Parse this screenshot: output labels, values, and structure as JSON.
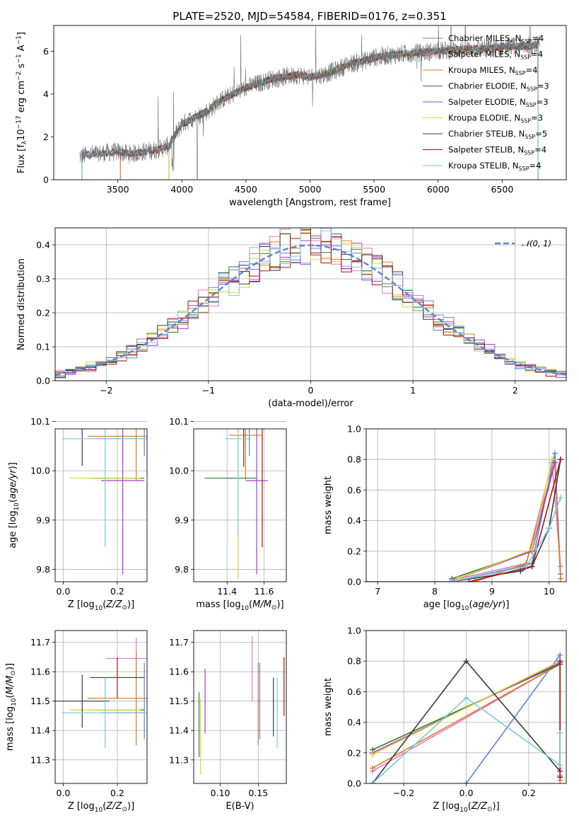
{
  "figure": {
    "title": "PLATE=2520, MJD=54584, FIBERID=0176, z=0.351"
  },
  "colors": {
    "Chabrier MILES": "#5c85d6",
    "Salpeter MILES": "#e377c2",
    "Kroupa MILES": "#e07a1f",
    "Chabrier ELODIE": "#2f7a2f",
    "Salpeter ELODIE": "#a23cd0",
    "Kroupa ELODIE": "#dcd52a",
    "Chabrier STELIB": "#3a3a3a",
    "Salpeter STELIB": "#b01010",
    "Kroupa STELIB": "#76c9d9",
    "grid": "#b0b0b0",
    "spectrum": "#707070"
  },
  "chart_data": [
    {
      "id": "spectrum",
      "type": "line",
      "title": "PLATE=2520, MJD=54584, FIBERID=0176, z=0.351",
      "xlabel": "wavelength [Angstrom, rest frame]",
      "ylabel": "Flux [f_λ 10^-17 erg cm^-2 s^-1 A^-1]",
      "xlim": [
        3000,
        7000
      ],
      "ylim": [
        0,
        7.2
      ],
      "xticks": [
        "3500",
        "4000",
        "4500",
        "5000",
        "5500",
        "6000",
        "6500"
      ],
      "yticks": [
        "0",
        "2",
        "4",
        "6"
      ],
      "grid": false,
      "legend_position": "right",
      "continuum": {
        "x": [
          3200,
          3300,
          3400,
          3500,
          3600,
          3700,
          3800,
          3900,
          3950,
          4000,
          4100,
          4200,
          4300,
          4400,
          4500,
          4600,
          4700,
          4800,
          4900,
          5000,
          5100,
          5200,
          5300,
          5400,
          5500,
          5600,
          5700,
          5800,
          5900,
          6000,
          6100,
          6200,
          6300,
          6400,
          6500,
          6600,
          6700,
          6780
        ],
        "y": [
          1.1,
          1.2,
          1.25,
          1.3,
          1.2,
          1.3,
          1.4,
          1.6,
          2.1,
          2.6,
          2.9,
          3.2,
          3.7,
          4.0,
          4.3,
          4.5,
          4.7,
          4.8,
          4.9,
          4.8,
          4.9,
          5.1,
          5.4,
          5.5,
          5.7,
          5.8,
          5.85,
          5.9,
          5.95,
          6.0,
          6.05,
          6.1,
          6.1,
          6.15,
          6.2,
          6.2,
          6.25,
          6.3
        ]
      },
      "series": [
        {
          "name": "Chabrier MILES",
          "label": "Chabrier MILES, N",
          "sub": "SSP",
          "suffix": "=4",
          "start": 3520,
          "end": 6780
        },
        {
          "name": "Salpeter MILES",
          "label": "Salpeter MILES, N",
          "sub": "SSP",
          "suffix": "=4",
          "start": 3520,
          "end": 6780
        },
        {
          "name": "Kroupa MILES",
          "label": "Kroupa MILES, N",
          "sub": "SSP",
          "suffix": "=4",
          "start": 3520,
          "end": 6780
        },
        {
          "name": "Chabrier ELODIE",
          "label": "Chabrier ELODIE, N",
          "sub": "SSP",
          "suffix": "=3",
          "start": 3900,
          "end": 6780
        },
        {
          "name": "Salpeter ELODIE",
          "label": "Salpeter ELODIE, N",
          "sub": "SSP",
          "suffix": "=3",
          "start": 3900,
          "end": 6780
        },
        {
          "name": "Kroupa ELODIE",
          "label": "Kroupa ELODIE, N",
          "sub": "SSP",
          "suffix": "=3",
          "start": 3900,
          "end": 6780
        },
        {
          "name": "Chabrier STELIB",
          "label": "Chabrier STELIB, N",
          "sub": "SSP",
          "suffix": "=5",
          "start": 3220,
          "end": 6780
        },
        {
          "name": "Salpeter STELIB",
          "label": "Salpeter STELIB, N",
          "sub": "SSP",
          "suffix": "=4",
          "start": 3220,
          "end": 6780
        },
        {
          "name": "Kroupa STELIB",
          "label": "Kroupa STELIB, N",
          "sub": "SSP",
          "suffix": "=4",
          "start": 3220,
          "end": 6780
        }
      ]
    },
    {
      "id": "residuals",
      "type": "line",
      "xlabel": "(data-model)/error",
      "ylabel": "Normed distribution",
      "xlim": [
        -2.5,
        2.5
      ],
      "ylim": [
        0,
        0.45
      ],
      "xticks": [
        "−2",
        "−1",
        "0",
        "1",
        "2"
      ],
      "yticks": [
        "0.0",
        "0.1",
        "0.2",
        "0.3",
        "0.4"
      ],
      "grid": true,
      "legend_position": "top-right",
      "normal_label": "𝒩(0, 1)",
      "bins": {
        "start": -2.5,
        "width": 0.1,
        "count": 50
      }
    },
    {
      "id": "age_vs_Z",
      "type": "scatter",
      "xlabel": "Z [log10(Z/Z⊙)]",
      "ylabel": "age [log10(age/yr)]",
      "xlim": [
        -0.03,
        0.31
      ],
      "ylim": [
        9.775,
        10.085
      ],
      "xticks": [
        "0.0",
        "0.2"
      ],
      "yticks": [
        "9.8",
        "9.9",
        "10.0",
        "10.1"
      ],
      "grid": true,
      "points": [
        {
          "name": "Chabrier MILES",
          "x": 0.3,
          "xerr": 0.0,
          "y": 10.09,
          "yerr": 0.06
        },
        {
          "name": "Salpeter MILES",
          "x": 0.27,
          "xerr": 0.11,
          "y": 10.095,
          "yerr": 0.0
        },
        {
          "name": "Kroupa MILES",
          "x": 0.27,
          "xerr": 0.18,
          "y": 10.07,
          "yerr": 0.09
        },
        {
          "name": "Chabrier ELODIE",
          "x": 0.2,
          "xerr": 0.1,
          "y": 9.985,
          "yerr": 0.0
        },
        {
          "name": "Salpeter ELODIE",
          "x": 0.22,
          "xerr": 0.08,
          "y": 9.98,
          "yerr": 0.19
        },
        {
          "name": "Kroupa ELODIE",
          "x": 0.155,
          "xerr": 0.13,
          "y": 9.985,
          "yerr": 0.0
        },
        {
          "name": "Chabrier STELIB",
          "x": 0.07,
          "xerr": 0.1,
          "y": 10.12,
          "yerr": 0.11
        },
        {
          "name": "Salpeter STELIB",
          "x": 0.2,
          "xerr": 0.1,
          "y": 10.065,
          "yerr": 0.0
        },
        {
          "name": "Kroupa STELIB",
          "x": 0.155,
          "xerr": 0.16,
          "y": 10.065,
          "yerr": 0.22
        }
      ]
    },
    {
      "id": "age_vs_mass",
      "type": "scatter",
      "xlabel": "mass [log10(M/M⊙)]",
      "ylabel": "",
      "xlim": [
        11.22,
        11.72
      ],
      "ylim": [
        9.775,
        10.085
      ],
      "xticks": [
        "11.4",
        "11.6"
      ],
      "yticks": [
        "9.8",
        "9.9",
        "10.0",
        "10.1"
      ],
      "grid": true,
      "points": [
        {
          "name": "Chabrier MILES",
          "x": 11.52,
          "xerr": 0.0,
          "y": 10.08,
          "yerr": 0.05
        },
        {
          "name": "Salpeter MILES",
          "x": 11.63,
          "xerr": 0.05,
          "y": 10.095,
          "yerr": 0.0
        },
        {
          "name": "Kroupa MILES",
          "x": 11.5,
          "xerr": 0.09,
          "y": 10.072,
          "yerr": 0.09
        },
        {
          "name": "Chabrier ELODIE",
          "x": 11.42,
          "xerr": 0.14,
          "y": 9.985,
          "yerr": 0.0
        },
        {
          "name": "Salpeter ELODIE",
          "x": 11.56,
          "xerr": 0.06,
          "y": 9.98,
          "yerr": 0.19
        },
        {
          "name": "Kroupa ELODIE",
          "x": 11.46,
          "xerr": 0.0,
          "y": 9.98,
          "yerr": 0.2
        },
        {
          "name": "Chabrier STELIB",
          "x": 11.49,
          "xerr": 0.07,
          "y": 10.118,
          "yerr": 0.11
        },
        {
          "name": "Salpeter STELIB",
          "x": 11.59,
          "xerr": 0.0,
          "y": 10.065,
          "yerr": 0.22
        },
        {
          "name": "Kroupa STELIB",
          "x": 11.46,
          "xerr": 0.07,
          "y": 10.065,
          "yerr": 0.2
        }
      ]
    },
    {
      "id": "mass_weight_vs_age",
      "type": "line",
      "xlabel": "age [log10(age/yr)]",
      "ylabel": "mass weight",
      "xlim": [
        6.8,
        10.3
      ],
      "ylim": [
        0,
        1.0
      ],
      "xticks": [
        "7",
        "8",
        "9",
        "10"
      ],
      "yticks": [
        "0.0",
        "0.2",
        "0.4",
        "0.6",
        "0.8",
        "1.0"
      ],
      "grid": true,
      "series": [
        {
          "name": "Chabrier MILES",
          "x": [
            6.8,
            8.3,
            9.5,
            9.7,
            10.1,
            10.2
          ],
          "y": [
            0.0,
            0.0,
            0.1,
            0.12,
            0.84,
            0.05
          ]
        },
        {
          "name": "Salpeter MILES",
          "x": [
            8.3,
            9.6,
            10.05,
            10.2
          ],
          "y": [
            0.01,
            0.12,
            0.78,
            0.1
          ]
        },
        {
          "name": "Kroupa MILES",
          "x": [
            8.7,
            9.6,
            10.1,
            10.2
          ],
          "y": [
            0.0,
            0.12,
            0.78,
            0.02
          ]
        },
        {
          "name": "Chabrier ELODIE",
          "x": [
            8.3,
            9.7,
            10.1
          ],
          "y": [
            0.02,
            0.2,
            0.78
          ]
        },
        {
          "name": "Salpeter ELODIE",
          "x": [
            8.4,
            9.7,
            10.1
          ],
          "y": [
            0.02,
            0.2,
            0.78
          ]
        },
        {
          "name": "Kroupa ELODIE",
          "x": [
            8.4,
            9.7,
            10.05
          ],
          "y": [
            0.02,
            0.21,
            0.8
          ]
        },
        {
          "name": "Chabrier STELIB",
          "x": [
            8.3,
            9.5,
            9.7,
            10.0,
            10.2
          ],
          "y": [
            0.0,
            0.07,
            0.1,
            0.35,
            0.8
          ]
        },
        {
          "name": "Salpeter STELIB",
          "x": [
            8.6,
            9.7,
            10.2
          ],
          "y": [
            0.0,
            0.1,
            0.8
          ]
        },
        {
          "name": "Kroupa STELIB",
          "x": [
            8.3,
            9.6,
            10.0,
            10.2
          ],
          "y": [
            0.0,
            0.1,
            0.35,
            0.55
          ]
        }
      ]
    },
    {
      "id": "mass_vs_Z",
      "type": "scatter",
      "xlabel": "Z [log10(Z/Z⊙)]",
      "ylabel": "mass [log10(M/M⊙)]",
      "xlim": [
        -0.03,
        0.31
      ],
      "ylim": [
        11.22,
        11.74
      ],
      "xticks": [
        "0.0",
        "0.2"
      ],
      "yticks": [
        "11.3",
        "11.4",
        "11.5",
        "11.6",
        "11.7"
      ],
      "grid": true,
      "points": [
        {
          "name": "Chabrier MILES",
          "x": 0.3,
          "xerr": 0.0,
          "y": 11.5,
          "yerr": 0.13
        },
        {
          "name": "Salpeter MILES",
          "x": 0.27,
          "xerr": 0.11,
          "y": 11.645,
          "yerr": 0.07
        },
        {
          "name": "Kroupa MILES",
          "x": 0.27,
          "xerr": 0.18,
          "y": 11.51,
          "yerr": 0.16
        },
        {
          "name": "Chabrier ELODIE",
          "x": 0.2,
          "xerr": 0.1,
          "y": 11.47,
          "yerr": 0.0
        },
        {
          "name": "Salpeter ELODIE",
          "x": 0.22,
          "xerr": 0.08,
          "y": 11.46,
          "yerr": 0.0
        },
        {
          "name": "Kroupa ELODIE",
          "x": 0.155,
          "xerr": 0.13,
          "y": 11.47,
          "yerr": 0.0
        },
        {
          "name": "Chabrier STELIB",
          "x": 0.07,
          "xerr": 0.1,
          "y": 11.5,
          "yerr": 0.09
        },
        {
          "name": "Salpeter STELIB",
          "x": 0.2,
          "xerr": 0.1,
          "y": 11.58,
          "yerr": 0.07
        },
        {
          "name": "Kroupa STELIB",
          "x": 0.155,
          "xerr": 0.16,
          "y": 11.46,
          "yerr": 0.12
        }
      ]
    },
    {
      "id": "mass_vs_ebv",
      "type": "scatter",
      "xlabel": "E(B-V)",
      "ylabel": "",
      "xlim": [
        0.065,
        0.187
      ],
      "ylim": [
        11.22,
        11.74
      ],
      "xticks": [
        "0.10",
        "0.15"
      ],
      "yticks": [
        "11.3",
        "11.4",
        "11.5",
        "11.6",
        "11.7"
      ],
      "grid": true,
      "points": [
        {
          "name": "Chabrier MILES",
          "x": 0.152,
          "xerr": 0.0,
          "y": 11.5,
          "yerr": 0.13
        },
        {
          "name": "Salpeter MILES",
          "x": 0.142,
          "xerr": 0.0,
          "y": 11.61,
          "yerr": 0.11
        },
        {
          "name": "Kroupa MILES",
          "x": 0.15,
          "xerr": 0.0,
          "y": 11.49,
          "yerr": 0.14
        },
        {
          "name": "Chabrier ELODIE",
          "x": 0.072,
          "xerr": 0.0,
          "y": 11.42,
          "yerr": 0.11
        },
        {
          "name": "Salpeter ELODIE",
          "x": 0.08,
          "xerr": 0.0,
          "y": 11.5,
          "yerr": 0.11
        },
        {
          "name": "Kroupa ELODIE",
          "x": 0.074,
          "xerr": 0.0,
          "y": 11.38,
          "yerr": 0.13
        },
        {
          "name": "Chabrier STELIB",
          "x": 0.17,
          "xerr": 0.0,
          "y": 11.48,
          "yerr": 0.1
        },
        {
          "name": "Salpeter STELIB",
          "x": 0.184,
          "xerr": 0.0,
          "y": 11.55,
          "yerr": 0.1
        },
        {
          "name": "Kroupa STELIB",
          "x": 0.175,
          "xerr": 0.0,
          "y": 11.46,
          "yerr": 0.12
        }
      ]
    },
    {
      "id": "mass_weight_vs_Z",
      "type": "line",
      "xlabel": "Z [log10(Z/Z⊙)]",
      "ylabel": "mass weight",
      "xlim": [
        -0.32,
        0.32
      ],
      "ylim": [
        0,
        1.0
      ],
      "xticks": [
        "−0.2",
        "0.0",
        "0.2"
      ],
      "yticks": [
        "0.0",
        "0.2",
        "0.4",
        "0.6",
        "0.8",
        "1.0"
      ],
      "grid": true,
      "series": [
        {
          "name": "Chabrier MILES",
          "x": [
            0.0,
            0.3,
            0.3
          ],
          "y": [
            0.0,
            0.84,
            0.05
          ]
        },
        {
          "name": "Salpeter MILES",
          "x": [
            -0.3,
            0.3,
            0.3
          ],
          "y": [
            0.08,
            0.78,
            0.1
          ]
        },
        {
          "name": "Kroupa MILES",
          "x": [
            -0.3,
            0.3,
            0.3
          ],
          "y": [
            0.1,
            0.78,
            0.02
          ]
        },
        {
          "name": "Chabrier ELODIE",
          "x": [
            -0.3,
            0.3
          ],
          "y": [
            0.22,
            0.78
          ]
        },
        {
          "name": "Salpeter ELODIE",
          "x": [
            -0.3,
            0.3
          ],
          "y": [
            0.2,
            0.79
          ]
        },
        {
          "name": "Kroupa ELODIE",
          "x": [
            -0.3,
            0.3
          ],
          "y": [
            0.19,
            0.8
          ]
        },
        {
          "name": "Chabrier STELIB",
          "x": [
            -0.3,
            0.0,
            0.3
          ],
          "y": [
            0.0,
            0.8,
            0.08
          ]
        },
        {
          "name": "Salpeter STELIB",
          "x": [
            0.3,
            0.3
          ],
          "y": [
            0.04,
            0.8
          ]
        },
        {
          "name": "Kroupa STELIB",
          "x": [
            -0.3,
            0.0,
            0.3,
            0.3
          ],
          "y": [
            0.0,
            0.56,
            0.12,
            0.33
          ]
        }
      ]
    }
  ]
}
